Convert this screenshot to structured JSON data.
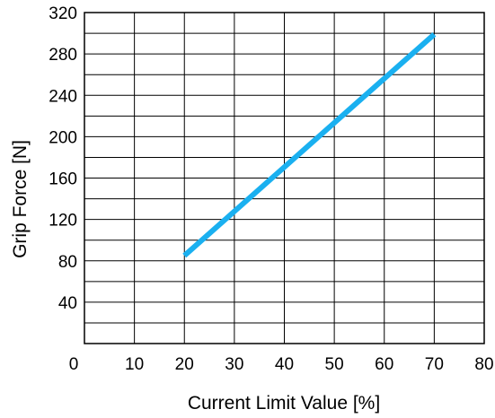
{
  "chart_data": {
    "type": "line",
    "title": "",
    "xlabel": "Current Limit Value [%]",
    "ylabel": "Grip Force [N]",
    "xlim": [
      0,
      80
    ],
    "ylim": [
      0,
      320
    ],
    "x_ticks": [
      "0",
      "10",
      "20",
      "30",
      "40",
      "50",
      "60",
      "70",
      "80"
    ],
    "y_ticks": [
      "40",
      "80",
      "120",
      "160",
      "200",
      "240",
      "280",
      "320"
    ],
    "grid": true,
    "series": [
      {
        "color": "#1ab0f0",
        "x": [
          20,
          70
        ],
        "y": [
          85,
          299
        ]
      }
    ]
  }
}
